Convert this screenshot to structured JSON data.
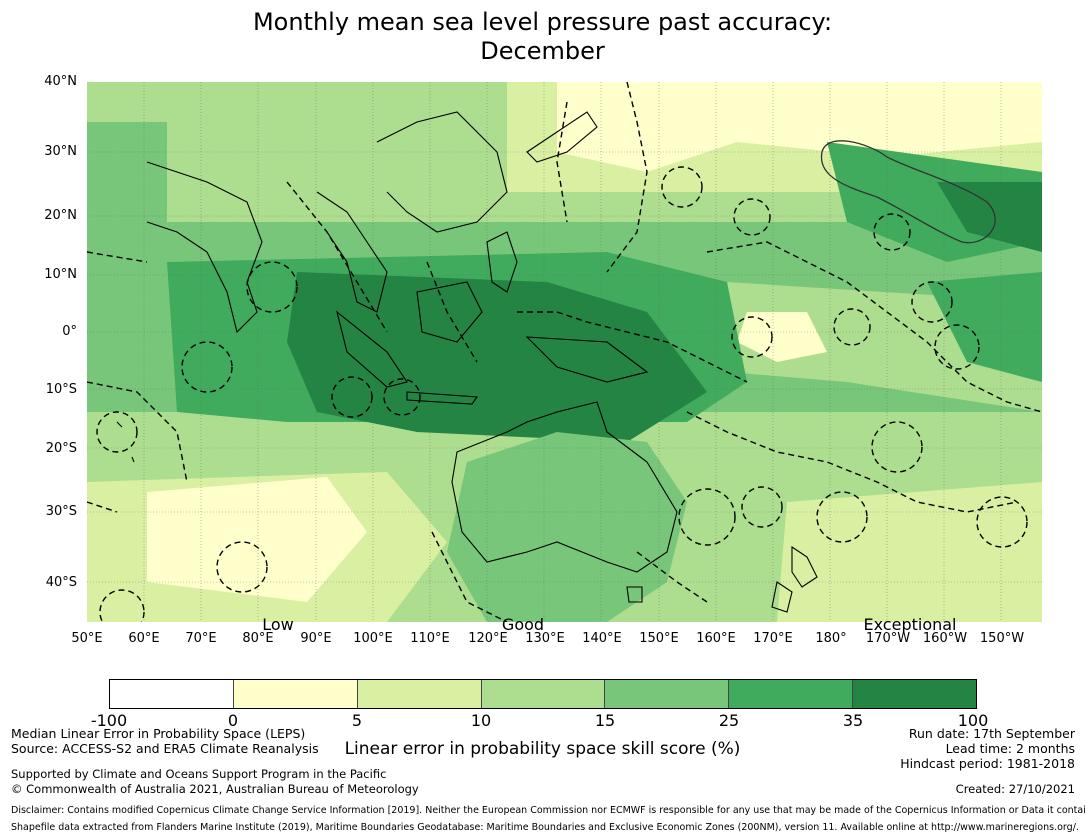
{
  "title": {
    "line1": "Monthly mean sea level pressure past accuracy:",
    "line2": "December"
  },
  "map": {
    "lat_labels": [
      "40°N",
      "30°N",
      "20°N",
      "10°N",
      "0°",
      "10°S",
      "20°S",
      "30°S",
      "40°S"
    ],
    "lon_labels": [
      "50°E",
      "60°E",
      "70°E",
      "80°E",
      "90°E",
      "100°E",
      "110°E",
      "120°E",
      "130°E",
      "140°E",
      "150°E",
      "160°E",
      "170°E",
      "180°",
      "170°W",
      "160°W",
      "150°W"
    ],
    "skill_labels": [
      "Low",
      "Good",
      "Exceptional"
    ],
    "land_color": "#000000",
    "boundary_style": "dashed"
  },
  "colorbar": {
    "ticks": [
      "-100",
      "0",
      "5",
      "10",
      "15",
      "25",
      "35",
      "100"
    ],
    "colors": [
      "#ffffff",
      "#ffffcc",
      "#d9f0a3",
      "#addd8e",
      "#78c679",
      "#41ab5d",
      "#238443"
    ],
    "title": "Linear error in probability space skill score (%)"
  },
  "footer": {
    "left_line1": "Median Linear Error in Probability Space (LEPS)",
    "left_line2": "Source: ACCESS-S2 and ERA5 Climate Reanalysis",
    "support_line1": "Supported by Climate and Oceans Support Program in the Pacific",
    "support_line2": "© Commonwealth of Australia 2021, Australian Bureau of Meteorology",
    "run_date": "Run date: 17th September",
    "lead_time": "Lead time: 2 months",
    "hindcast": "Hindcast period: 1981-2018",
    "created": "Created: 27/10/2021",
    "disclaimer": "Disclaimer: Contains modified Copernicus Climate Change Service Information [2019]. Neither the European Commission nor ECMWF is responsible for any use that may be made of the Copernicus Information or Data it contains.",
    "shapefile": "Shapefile data extracted from Flanders Marine Institute (2019), Maritime Boundaries Geodatabase: Maritime Boundaries and Exclusive Economic Zones (200NM), version 11. Available online at http://www.marineregions.org/."
  }
}
